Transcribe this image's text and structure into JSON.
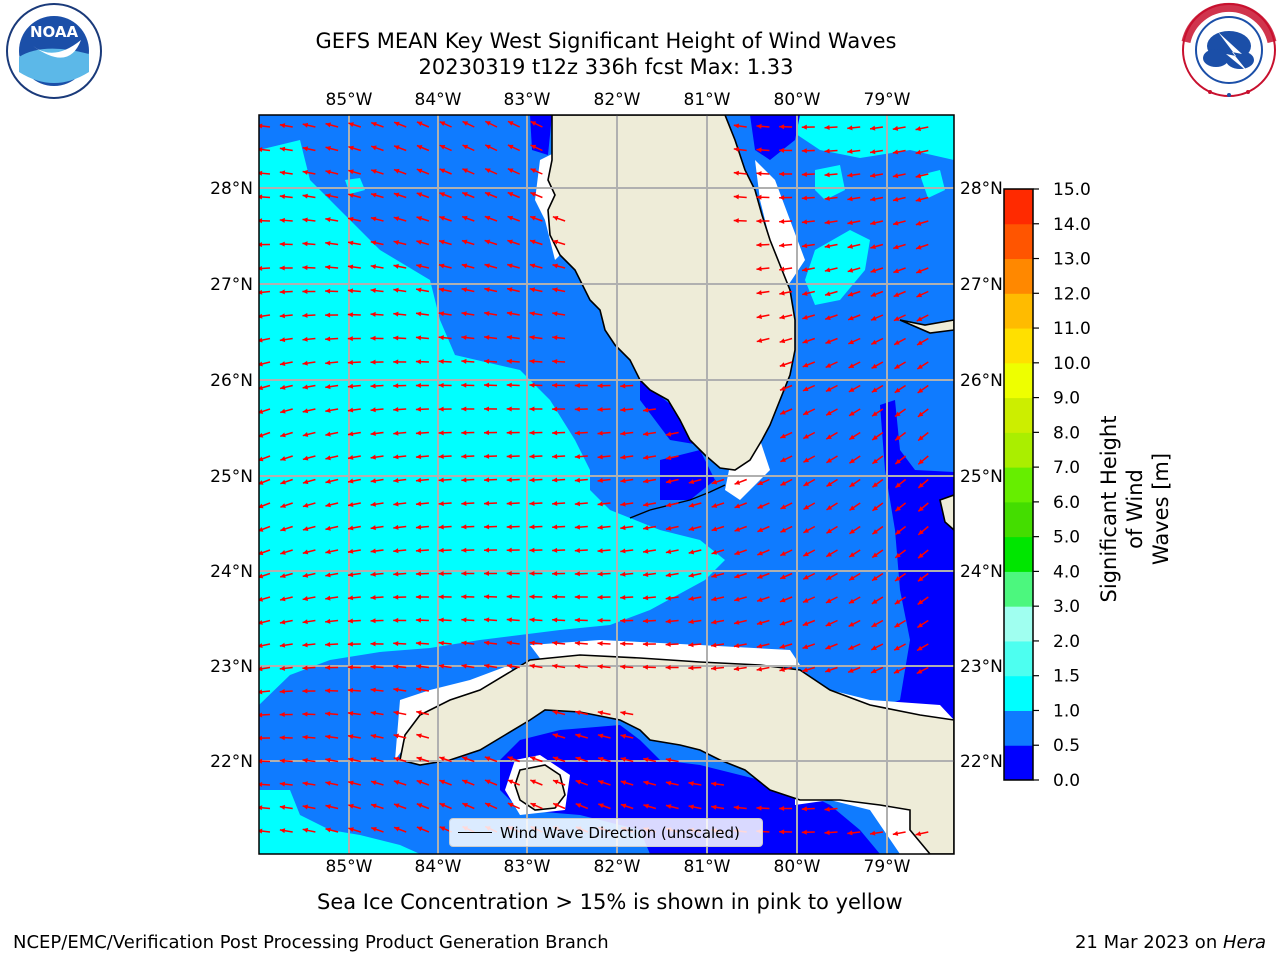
{
  "title_line1": "GEFS MEAN Key West Significant Height of Wind Waves",
  "title_line2": "20230319 t12z 336h fcst   Max: 1.33",
  "logos": {
    "left": "NOAA",
    "left_ring": "NATIONAL OCEANIC AND ATMOSPHERIC ADMINISTRATION · U.S. DEPARTMENT OF COMMERCE",
    "right_ring": "NATIONAL WEATHER SERVICE"
  },
  "lon_labels": [
    "85°W",
    "84°W",
    "83°W",
    "82°W",
    "81°W",
    "80°W",
    "79°W"
  ],
  "lat_labels": [
    "28°N",
    "27°N",
    "26°N",
    "25°N",
    "24°N",
    "23°N",
    "22°N"
  ],
  "legend_label": "Wind Wave Direction (unscaled)",
  "colorbar": {
    "label_line1": "Significant Height of Wind",
    "label_line2": "Waves [m]",
    "ticks": [
      "0.0",
      "0.5",
      "1.0",
      "1.5",
      "2.0",
      "3.0",
      "4.0",
      "5.0",
      "6.0",
      "7.0",
      "8.0",
      "9.0",
      "10.0",
      "11.0",
      "12.0",
      "13.0",
      "14.0",
      "15.0"
    ],
    "bin_colors": [
      "#0000ff",
      "#0f7bff",
      "#00ffff",
      "#4dfff0",
      "#a0fff0",
      "#4cf77e",
      "#00e600",
      "#44dd00",
      "#66ee00",
      "#aaee00",
      "#ccee00",
      "#eeff00",
      "#ffe000",
      "#ffbb00",
      "#ff8800",
      "#ff5500",
      "#ff2a00",
      "#ff0000"
    ]
  },
  "ice_note": "Sea Ice Concentration > 15% is shown in pink to yellow",
  "footer_left": "NCEP/EMC/Verification Post Processing Product Generation Branch",
  "footer_date": "21 Mar 2023 on ",
  "footer_host": "Hera",
  "colors": {
    "land": "#eeecd8",
    "deep_blue": "#0000ff",
    "mid_blue": "#0f7bff",
    "cyan": "#00ffff",
    "arrow": "#ff0000",
    "grid": "#b0b0b0"
  }
}
